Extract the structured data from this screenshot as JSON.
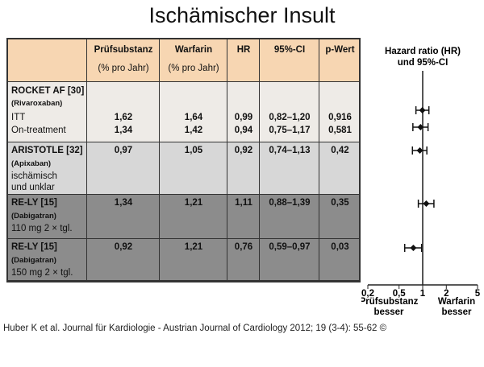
{
  "title": "Ischämischer Insult",
  "table": {
    "headers": [
      [
        "Prüfsubstanz",
        "(% pro Jahr)"
      ],
      [
        "Warfarin",
        "(% pro Jahr)"
      ],
      [
        "HR",
        ""
      ],
      [
        "95%-CI",
        ""
      ],
      [
        "p-Wert",
        ""
      ]
    ],
    "colors": {
      "header": "#f7d6b2",
      "rocket": "#eeebe7",
      "aristotle": "#d7d7d7",
      "rely": "#8c8c8c"
    },
    "rocket": {
      "name": "ROCKET AF [30]",
      "drug": "(Rivaroxaban)",
      "rows": [
        [
          "ITT",
          "1,62",
          "1,64",
          "0,99",
          "0,82–1,20",
          "0,916"
        ],
        [
          "On-treatment",
          "1,34",
          "1,42",
          "0,94",
          "0,75–1,17",
          "0,581"
        ]
      ]
    },
    "aristotle": {
      "name": "ARISTOTLE [32]",
      "drug": "(Apixaban)",
      "sub1": "ischämisch",
      "sub2": "und unklar",
      "vals": [
        "0,97",
        "1,05",
        "0,92",
        "0,74–1,13",
        "0,42"
      ]
    },
    "rely110": {
      "name": "RE-LY [15]",
      "drug": "(Dabigatran)",
      "sub": "110 mg 2 × tgl.",
      "vals": [
        "1,34",
        "1,21",
        "1,11",
        "0,88–1,39",
        "0,35"
      ]
    },
    "rely150": {
      "name": "RE-LY [15]",
      "drug": "(Dabigatran)",
      "sub": "150 mg 2 × tgl.",
      "vals": [
        "0,92",
        "1,21",
        "0,76",
        "0,59–0,97",
        "0,03"
      ]
    }
  },
  "chart_data": {
    "type": "forest",
    "title": [
      "Hazard ratio (HR)",
      "und 95%-CI"
    ],
    "scale": "log",
    "xlim": [
      0.2,
      5
    ],
    "ticks": [
      0.2,
      0.5,
      1,
      2,
      5
    ],
    "tick_labels": [
      "0,2",
      "0,5",
      "1",
      "2",
      "5"
    ],
    "left_label": [
      "Prüfsubstanz",
      "besser"
    ],
    "right_label": [
      "Warfarin",
      "besser"
    ],
    "points": [
      {
        "label": "ROCKET AF ITT",
        "hr": 0.99,
        "lo": 0.82,
        "hi": 1.2
      },
      {
        "label": "ROCKET AF On-treatment",
        "hr": 0.94,
        "lo": 0.75,
        "hi": 1.17
      },
      {
        "label": "ARISTOTLE",
        "hr": 0.92,
        "lo": 0.74,
        "hi": 1.13
      },
      {
        "label": "RE-LY 110 mg",
        "hr": 1.11,
        "lo": 0.88,
        "hi": 1.39
      },
      {
        "label": "RE-LY 150 mg",
        "hr": 0.76,
        "lo": 0.59,
        "hi": 0.97
      }
    ]
  },
  "footer": "Huber K et al. Journal für Kardiologie - Austrian Journal of Cardiology 2012; 19 (3-4): 55-62 ©"
}
